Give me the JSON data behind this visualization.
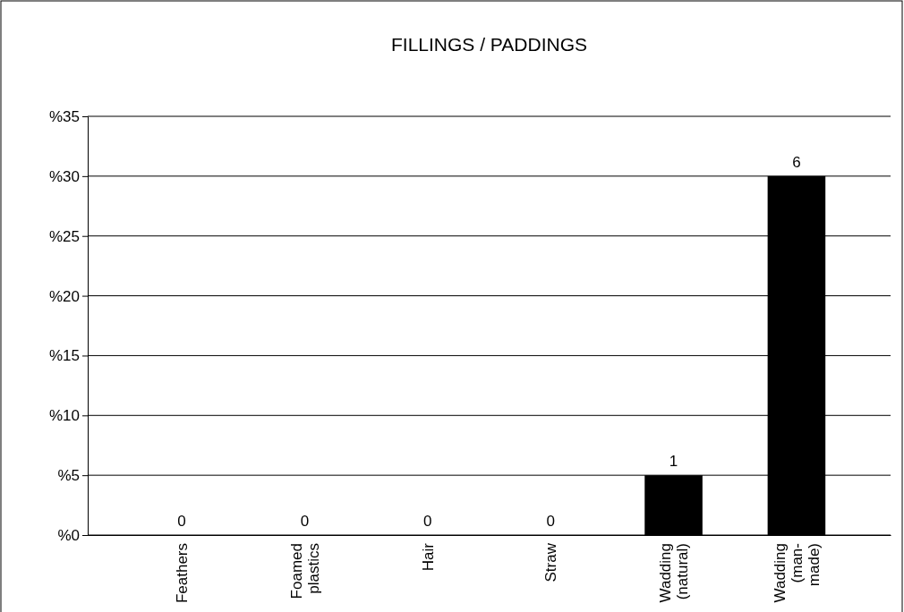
{
  "chart_data": {
    "type": "bar",
    "title": "FILLINGS / PADDINGS",
    "categories": [
      "Feathers",
      "Foamed plastics",
      "Hair",
      "Straw",
      "Wadding (natural)",
      "Wadding (man-made)"
    ],
    "values": [
      0,
      0,
      0,
      0,
      5,
      30
    ],
    "annotations": [
      {
        "text": "0",
        "x": "Feathers",
        "y": 0
      },
      {
        "text": "0",
        "x": "Foamed plastics",
        "y": 0
      },
      {
        "text": "0",
        "x": "Hair",
        "y": 0
      },
      {
        "text": "0",
        "x": "Straw",
        "y": 0
      },
      {
        "text": "1",
        "x": "Wadding (natural)",
        "y": 5
      },
      {
        "text": "6",
        "x": "Wadding (man-made)",
        "y": 30
      }
    ],
    "color": "#000000",
    "ylim": [
      0,
      35
    ],
    "yticks": [
      {
        "value": 0,
        "label": "%0"
      },
      {
        "value": 5,
        "label": "%5"
      },
      {
        "value": 10,
        "label": "%10"
      },
      {
        "value": 15,
        "label": "%15"
      },
      {
        "value": 20,
        "label": "%20"
      },
      {
        "value": 25,
        "label": "%25"
      },
      {
        "value": 30,
        "label": "%30"
      },
      {
        "value": 35,
        "label": "%35"
      }
    ],
    "grid": "y"
  }
}
